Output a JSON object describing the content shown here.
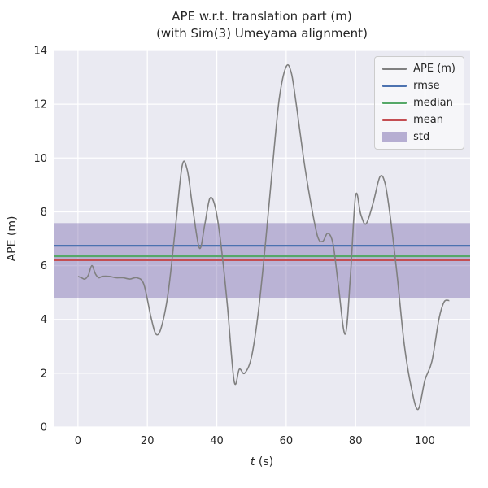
{
  "title": {
    "line1": "APE w.r.t. translation part (m)",
    "line2": "(with Sim(3) Umeyama alignment)"
  },
  "chart_data": {
    "type": "line",
    "title": "APE w.r.t. translation part (m)\n(with Sim(3) Umeyama alignment)",
    "xlabel": "t (s)",
    "ylabel": "APE (m)",
    "xlim": [
      -7,
      113
    ],
    "ylim": [
      0,
      14
    ],
    "xticks": [
      0,
      20,
      40,
      60,
      80,
      100
    ],
    "yticks": [
      0,
      2,
      4,
      6,
      8,
      10,
      12,
      14
    ],
    "grid": true,
    "legend_position": "upper right",
    "stats": {
      "rmse": 6.74,
      "median": 6.35,
      "mean": 6.2,
      "std": 1.4,
      "std_band": [
        4.78,
        7.58
      ]
    },
    "series": [
      {
        "name": "APE (m)",
        "color": "#808080",
        "x": [
          0,
          1,
          2,
          3,
          4,
          5,
          6,
          7,
          9,
          11,
          13,
          15,
          17,
          19,
          21,
          22.5,
          24,
          26,
          28,
          30,
          31.5,
          33,
          35,
          36.5,
          38,
          39.5,
          41,
          43,
          45,
          46.5,
          48,
          50,
          52,
          54,
          56,
          58,
          60,
          61.5,
          63,
          65,
          67,
          69,
          70.5,
          72,
          73.5,
          75,
          77,
          78.5,
          80,
          81.5,
          83,
          85,
          87,
          88.5,
          90,
          92,
          94,
          96,
          98,
          100,
          102,
          104,
          105.5,
          107
        ],
        "y": [
          5.6,
          5.55,
          5.5,
          5.65,
          6.0,
          5.7,
          5.55,
          5.6,
          5.6,
          5.55,
          5.55,
          5.5,
          5.55,
          5.3,
          4.1,
          3.45,
          3.7,
          5.0,
          7.3,
          9.7,
          9.55,
          8.2,
          6.65,
          7.5,
          8.5,
          8.2,
          7.0,
          4.6,
          1.7,
          2.15,
          2.0,
          2.6,
          4.3,
          6.8,
          9.6,
          12.2,
          13.4,
          13.15,
          11.9,
          10.0,
          8.4,
          7.1,
          6.9,
          7.2,
          6.8,
          5.3,
          3.45,
          5.6,
          8.6,
          7.9,
          7.55,
          8.3,
          9.3,
          9.05,
          7.8,
          5.6,
          3.1,
          1.5,
          0.65,
          1.75,
          2.45,
          4.0,
          4.65,
          4.7
        ]
      },
      {
        "name": "rmse",
        "color": "#4C72B0",
        "value": 6.74
      },
      {
        "name": "median",
        "color": "#55A868",
        "value": 6.35
      },
      {
        "name": "mean",
        "color": "#C44E52",
        "value": 6.2
      },
      {
        "name": "std",
        "color": "#8172B2",
        "band": [
          4.78,
          7.58
        ],
        "alpha": 0.45
      }
    ],
    "legend": [
      {
        "label": "APE (m)",
        "color": "#808080",
        "type": "line"
      },
      {
        "label": "rmse",
        "color": "#4C72B0",
        "type": "line"
      },
      {
        "label": "median",
        "color": "#55A868",
        "type": "line"
      },
      {
        "label": "mean",
        "color": "#C44E52",
        "type": "line"
      },
      {
        "label": "std",
        "color": "#8172B2",
        "type": "patch"
      }
    ],
    "colors": {
      "axes_bg": "#EAEAF2",
      "grid": "#FFFFFF",
      "text": "#262626"
    }
  }
}
